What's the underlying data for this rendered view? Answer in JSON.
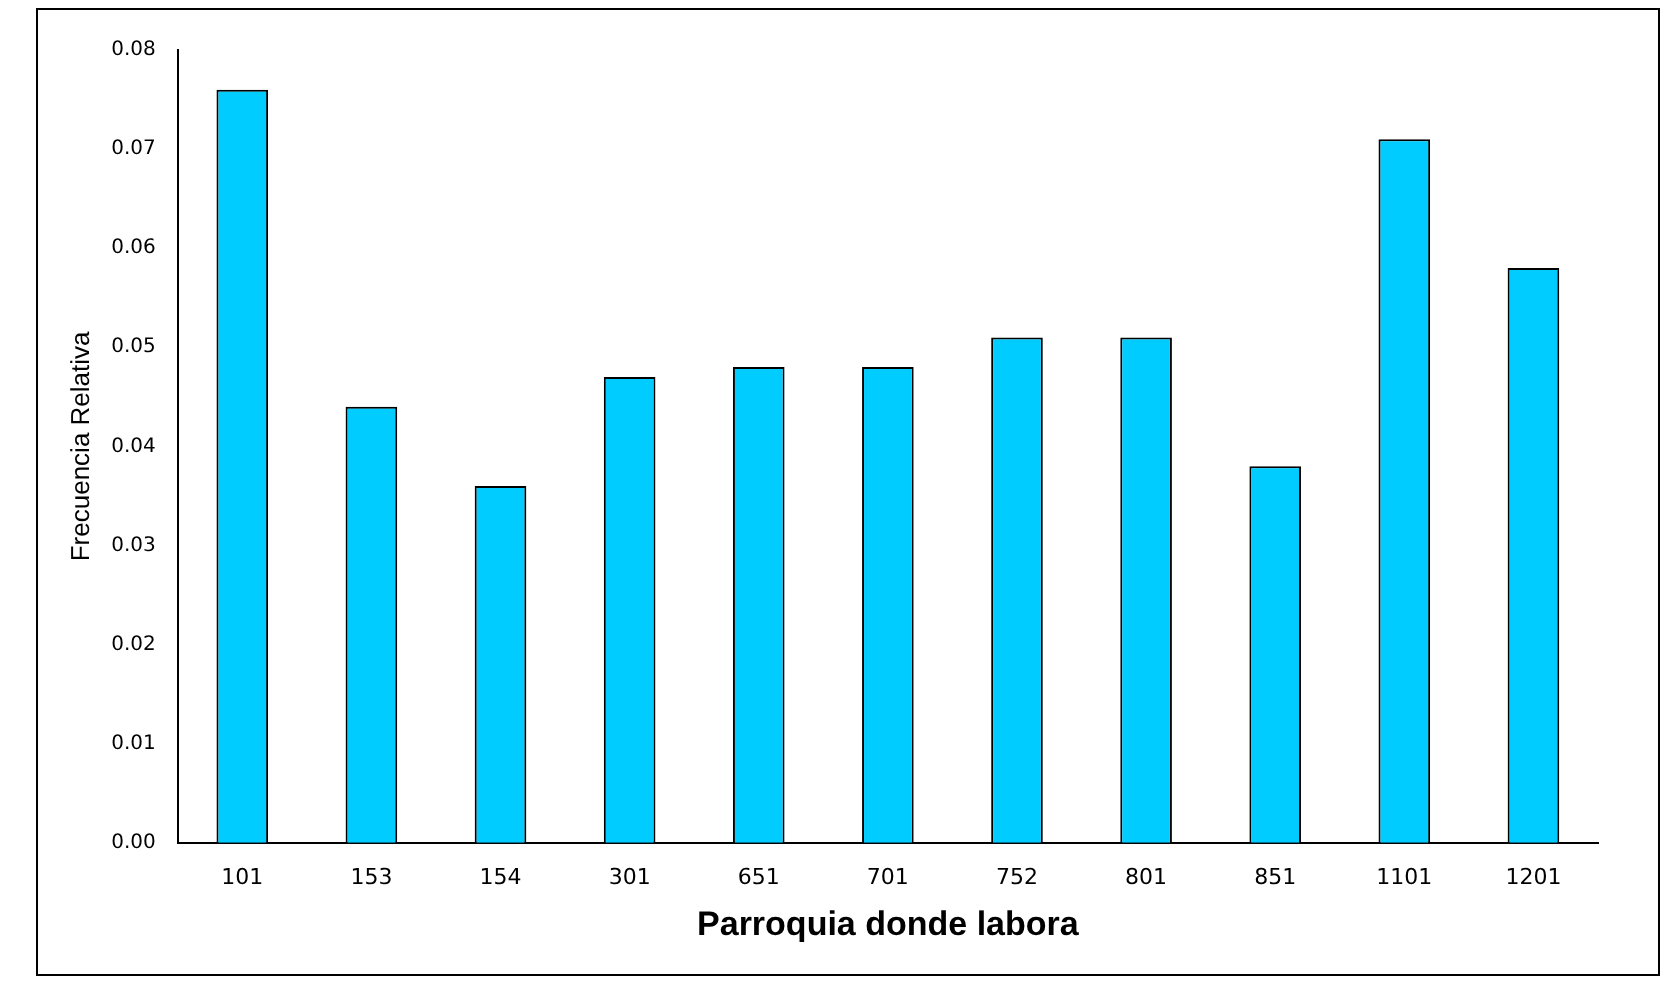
{
  "chart_data": {
    "type": "bar",
    "xlabel": "Parroquia donde labora",
    "ylabel": "Frecuencia Relativa",
    "categories": [
      "101",
      "153",
      "154",
      "301",
      "651",
      "701",
      "752",
      "801",
      "851",
      "1101",
      "1201"
    ],
    "values": [
      0.076,
      0.044,
      0.036,
      0.047,
      0.048,
      0.048,
      0.051,
      0.051,
      0.038,
      0.071,
      0.058
    ],
    "color": "#00ccff",
    "ylim": [
      0,
      0.08
    ],
    "yticks": [
      {
        "value": 0,
        "label": "0.00"
      },
      {
        "value": 0.01,
        "label": "0.01"
      },
      {
        "value": 0.02,
        "label": "0.02"
      },
      {
        "value": 0.03,
        "label": "0.03"
      },
      {
        "value": 0.04,
        "label": "0.04"
      },
      {
        "value": 0.05,
        "label": "0.05"
      },
      {
        "value": 0.06,
        "label": "0.06"
      },
      {
        "value": 0.07,
        "label": "0.07"
      },
      {
        "value": 0.08,
        "label": "0.08"
      }
    ],
    "grid": false,
    "legend": false
  }
}
